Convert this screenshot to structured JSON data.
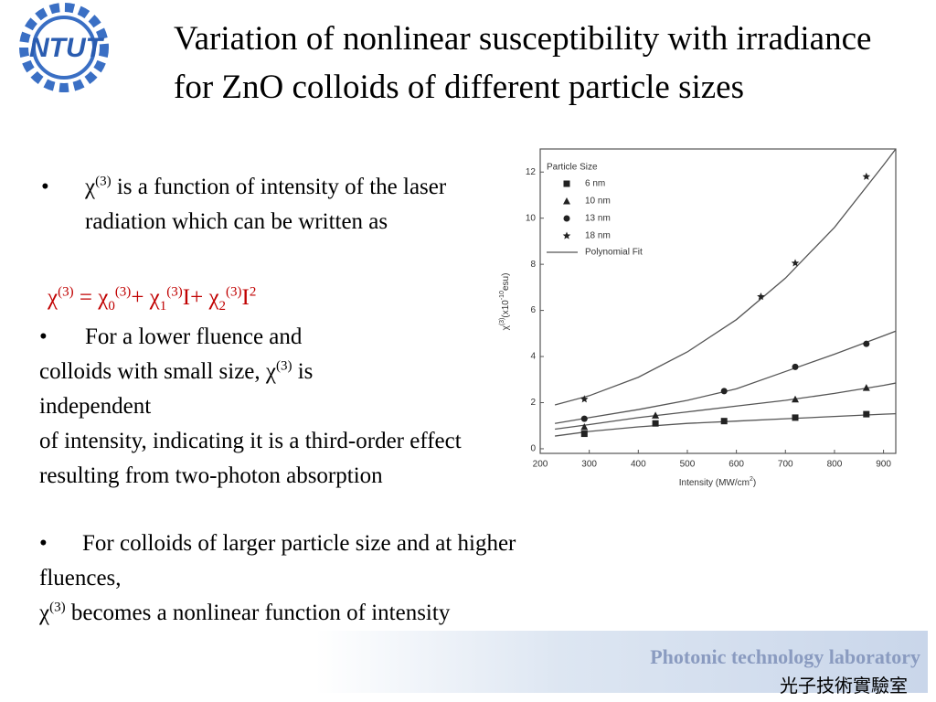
{
  "logo": {
    "text": "NTUT"
  },
  "header": {
    "title": "Variation of nonlinear susceptibility with irradiance for ZnO colloids of different particle sizes"
  },
  "bullets": {
    "b1": [
      "χ",
      "(3)",
      " is a function of intensity of the laser radiation which can be written as"
    ],
    "formula": [
      "χ",
      "(3)",
      " = χ",
      "0",
      "(3)",
      "+ χ",
      "1",
      "(3)",
      "I+ χ",
      "2",
      "(3)",
      "I",
      "2"
    ],
    "b2": [
      "For a lower fluence and",
      "colloids with small size, χ",
      "(3)",
      " is",
      "independent",
      "of intensity, indicating it is a third-order effect resulting from two-photon absorption"
    ],
    "b3": [
      "For colloids of larger particle size and at higher fluences,",
      "χ",
      "(3)",
      " becomes a nonlinear function of intensity"
    ]
  },
  "footer": {
    "lab": "Photonic technology laboratory",
    "lab_zh": "光子技術實驗室"
  },
  "chart_data": {
    "type": "scatter",
    "x_label": [
      "Intensity (MW/cm",
      "2",
      ")"
    ],
    "y_label": [
      "χ",
      "(3)",
      "(x10",
      "-10",
      "esu)"
    ],
    "legend_title": "Particle Size",
    "fit_name": "Polynomial Fit",
    "xlim": [
      200,
      925
    ],
    "xticks": [
      200,
      300,
      400,
      500,
      600,
      700,
      800,
      900
    ],
    "ylim": [
      -0.2,
      13
    ],
    "yticks": [
      0,
      2,
      4,
      6,
      8,
      10,
      12
    ],
    "fit_x": [
      230,
      300,
      400,
      500,
      600,
      700,
      800,
      900,
      925
    ],
    "series": [
      {
        "name": "6 nm",
        "marker": "square",
        "color": "#222",
        "x": [
          290,
          435,
          575,
          720,
          865
        ],
        "values": [
          0.65,
          1.1,
          1.2,
          1.35,
          1.5
        ],
        "fit": [
          0.55,
          0.75,
          0.95,
          1.1,
          1.2,
          1.3,
          1.4,
          1.5,
          1.52
        ]
      },
      {
        "name": "10 nm",
        "marker": "triangle",
        "color": "#222",
        "x": [
          290,
          435,
          720,
          865
        ],
        "values": [
          0.95,
          1.45,
          2.15,
          2.65
        ],
        "fit": [
          0.85,
          1.05,
          1.35,
          1.6,
          1.85,
          2.1,
          2.4,
          2.75,
          2.85
        ]
      },
      {
        "name": "13 nm",
        "marker": "circle",
        "color": "#222",
        "x": [
          290,
          575,
          720,
          865
        ],
        "values": [
          1.3,
          2.5,
          3.55,
          4.55
        ],
        "fit": [
          1.1,
          1.35,
          1.7,
          2.1,
          2.6,
          3.35,
          4.1,
          4.9,
          5.1
        ]
      },
      {
        "name": "18 nm",
        "marker": "star",
        "color": "#222",
        "x": [
          290,
          650,
          720,
          865
        ],
        "values": [
          2.15,
          6.6,
          8.05,
          11.8
        ],
        "fit": [
          1.9,
          2.3,
          3.1,
          4.2,
          5.6,
          7.4,
          9.6,
          12.3,
          13.0
        ]
      }
    ]
  }
}
